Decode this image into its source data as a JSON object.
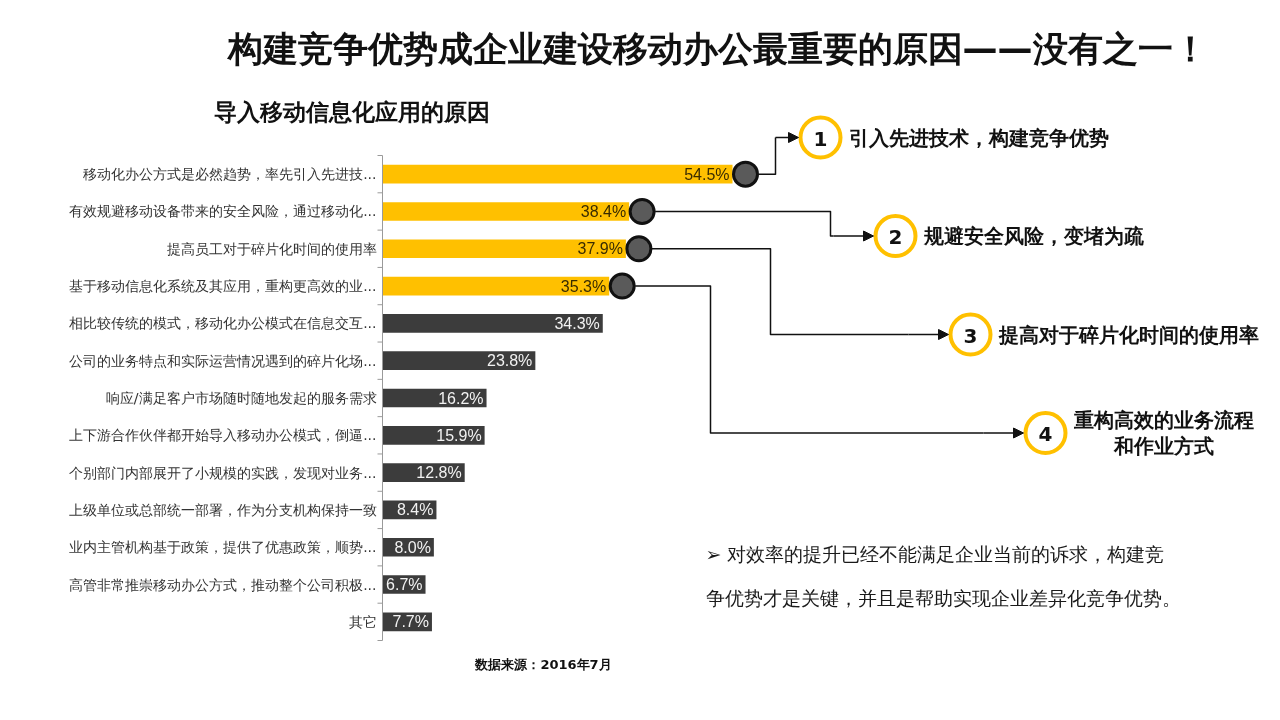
{
  "chart_data": {
    "type": "bar",
    "orientation": "horizontal",
    "title": "构建竞争优势成企业建设移动办公最重要的原因——没有之一！",
    "subtitle": "导入移动信息化应用的原因",
    "categories": [
      "移动化办公方式是必然趋势，率先引入先进技...",
      "有效规避移动设备带来的安全风险，通过移动化...",
      "提高员工对于碎片化时间的使用率",
      "基于移动信息化系统及其应用，重构更高效的业...",
      "相比较传统的模式，移动化办公模式在信息交互...",
      "公司的业务特点和实际运营情况遇到的碎片化场...",
      "响应/满足客户市场随时随地发起的服务需求",
      "上下游合作伙伴都开始导入移动办公模式，倒逼...",
      "个别部门内部展开了小规模的实践，发现对业务...",
      "上级单位或总部统一部署，作为分支机构保持一致",
      "业内主管机构基于政策，提供了优惠政策，顺势...",
      "高管非常推崇移动办公方式，推动整个公司积极...",
      "其它"
    ],
    "values": [
      54.5,
      38.4,
      37.9,
      35.3,
      34.3,
      23.8,
      16.2,
      15.9,
      12.8,
      8.4,
      8.0,
      6.7,
      7.7
    ],
    "value_labels": [
      "54.5%",
      "38.4%",
      "37.9%",
      "35.3%",
      "34.3%",
      "23.8%",
      "16.2%",
      "15.9%",
      "12.8%",
      "8.4%",
      "8.0%",
      "6.7%",
      "7.7%"
    ],
    "colors": [
      "#ffc000",
      "#ffc000",
      "#ffc000",
      "#ffc000",
      "#3c3c3c",
      "#3c3c3c",
      "#3c3c3c",
      "#3c3c3c",
      "#3c3c3c",
      "#3c3c3c",
      "#3c3c3c",
      "#3c3c3c",
      "#3c3c3c"
    ],
    "annotations": [
      "1",
      "引入先进技术，构建竞争优势",
      "2",
      "规避安全风险，变堵为疏",
      "3",
      "提高对于碎片化时间的使用率",
      "4",
      "重构高效的业务流程和作业方式",
      "➢ 对效率的提升已经不能满足企业当前的诉求，构建竞争优势才是关键，并且是帮助实现企业差异化竞争优势。",
      "数据来源：2016年7月"
    ]
  }
}
